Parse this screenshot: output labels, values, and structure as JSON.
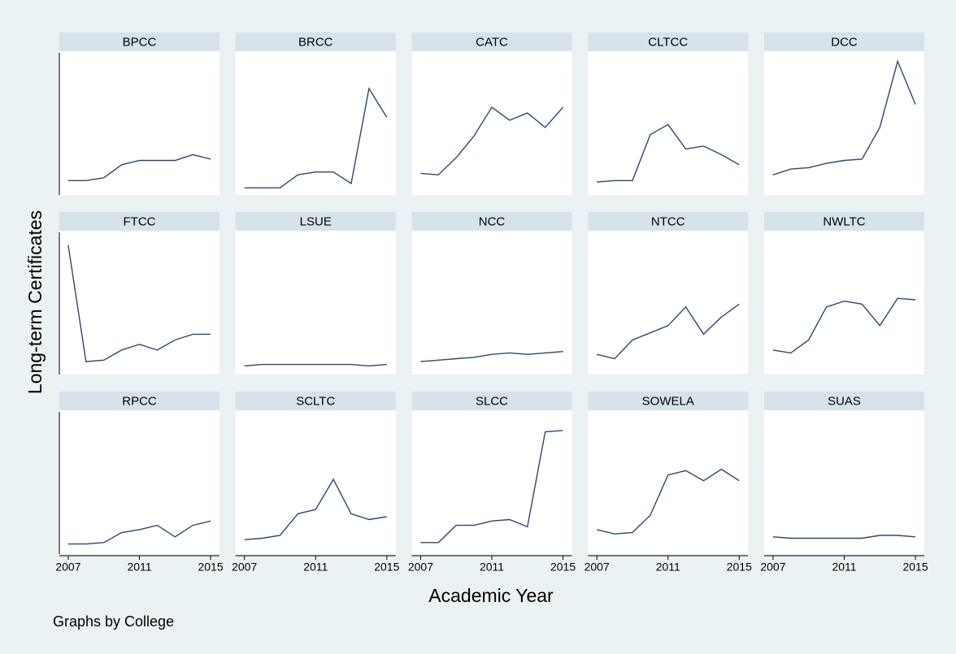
{
  "chart_data": {
    "type": "line",
    "ylabel": "Long-term Certificates",
    "xlabel": "Academic Year",
    "note": "Graphs by College",
    "x": [
      2007,
      2008,
      2009,
      2010,
      2011,
      2012,
      2013,
      2014,
      2015
    ],
    "xlim": [
      2006.5,
      2015.5
    ],
    "xticks": [
      2007,
      2011,
      2015
    ],
    "ylim": [
      0,
      100
    ],
    "color": "#2c4a6b",
    "panels": [
      {
        "title": "BPCC",
        "values": [
          10,
          10,
          12,
          21,
          24,
          24,
          24,
          28,
          25
        ]
      },
      {
        "title": "BRCC",
        "values": [
          5,
          5,
          5,
          14,
          16,
          16,
          8,
          74,
          54
        ]
      },
      {
        "title": "CATC",
        "values": [
          15,
          14,
          26,
          41,
          61,
          52,
          57,
          47,
          61
        ]
      },
      {
        "title": "CLTCC",
        "values": [
          9,
          10,
          10,
          42,
          49,
          32,
          34,
          28,
          21
        ]
      },
      {
        "title": "DCC",
        "values": [
          14,
          18,
          19,
          22,
          24,
          25,
          47,
          93,
          63
        ]
      },
      {
        "title": "FTCC",
        "values": [
          90,
          9,
          10,
          17,
          21,
          17,
          24,
          28,
          28
        ]
      },
      {
        "title": "LSUE",
        "values": [
          6,
          7,
          7,
          7,
          7,
          7,
          7,
          6,
          7
        ]
      },
      {
        "title": "NCC",
        "values": [
          9,
          10,
          11,
          12,
          14,
          15,
          14,
          15,
          16
        ]
      },
      {
        "title": "NTCC",
        "values": [
          14,
          11,
          24,
          29,
          34,
          47,
          28,
          40,
          49
        ]
      },
      {
        "title": "NWLTC",
        "values": [
          17,
          15,
          24,
          47,
          51,
          49,
          34,
          53,
          52
        ]
      },
      {
        "title": "RPCC",
        "values": [
          7,
          7,
          8,
          15,
          17,
          20,
          12,
          20,
          23
        ]
      },
      {
        "title": "SCLTC",
        "values": [
          10,
          11,
          13,
          28,
          31,
          52,
          28,
          24,
          26
        ]
      },
      {
        "title": "SLCC",
        "values": [
          8,
          8,
          20,
          20,
          23,
          24,
          19,
          85,
          86
        ]
      },
      {
        "title": "SOWELA",
        "values": [
          17,
          14,
          15,
          27,
          55,
          58,
          51,
          59,
          51
        ]
      },
      {
        "title": "SUAS",
        "values": [
          12,
          11,
          11,
          11,
          11,
          11,
          13,
          13,
          12
        ]
      }
    ]
  }
}
